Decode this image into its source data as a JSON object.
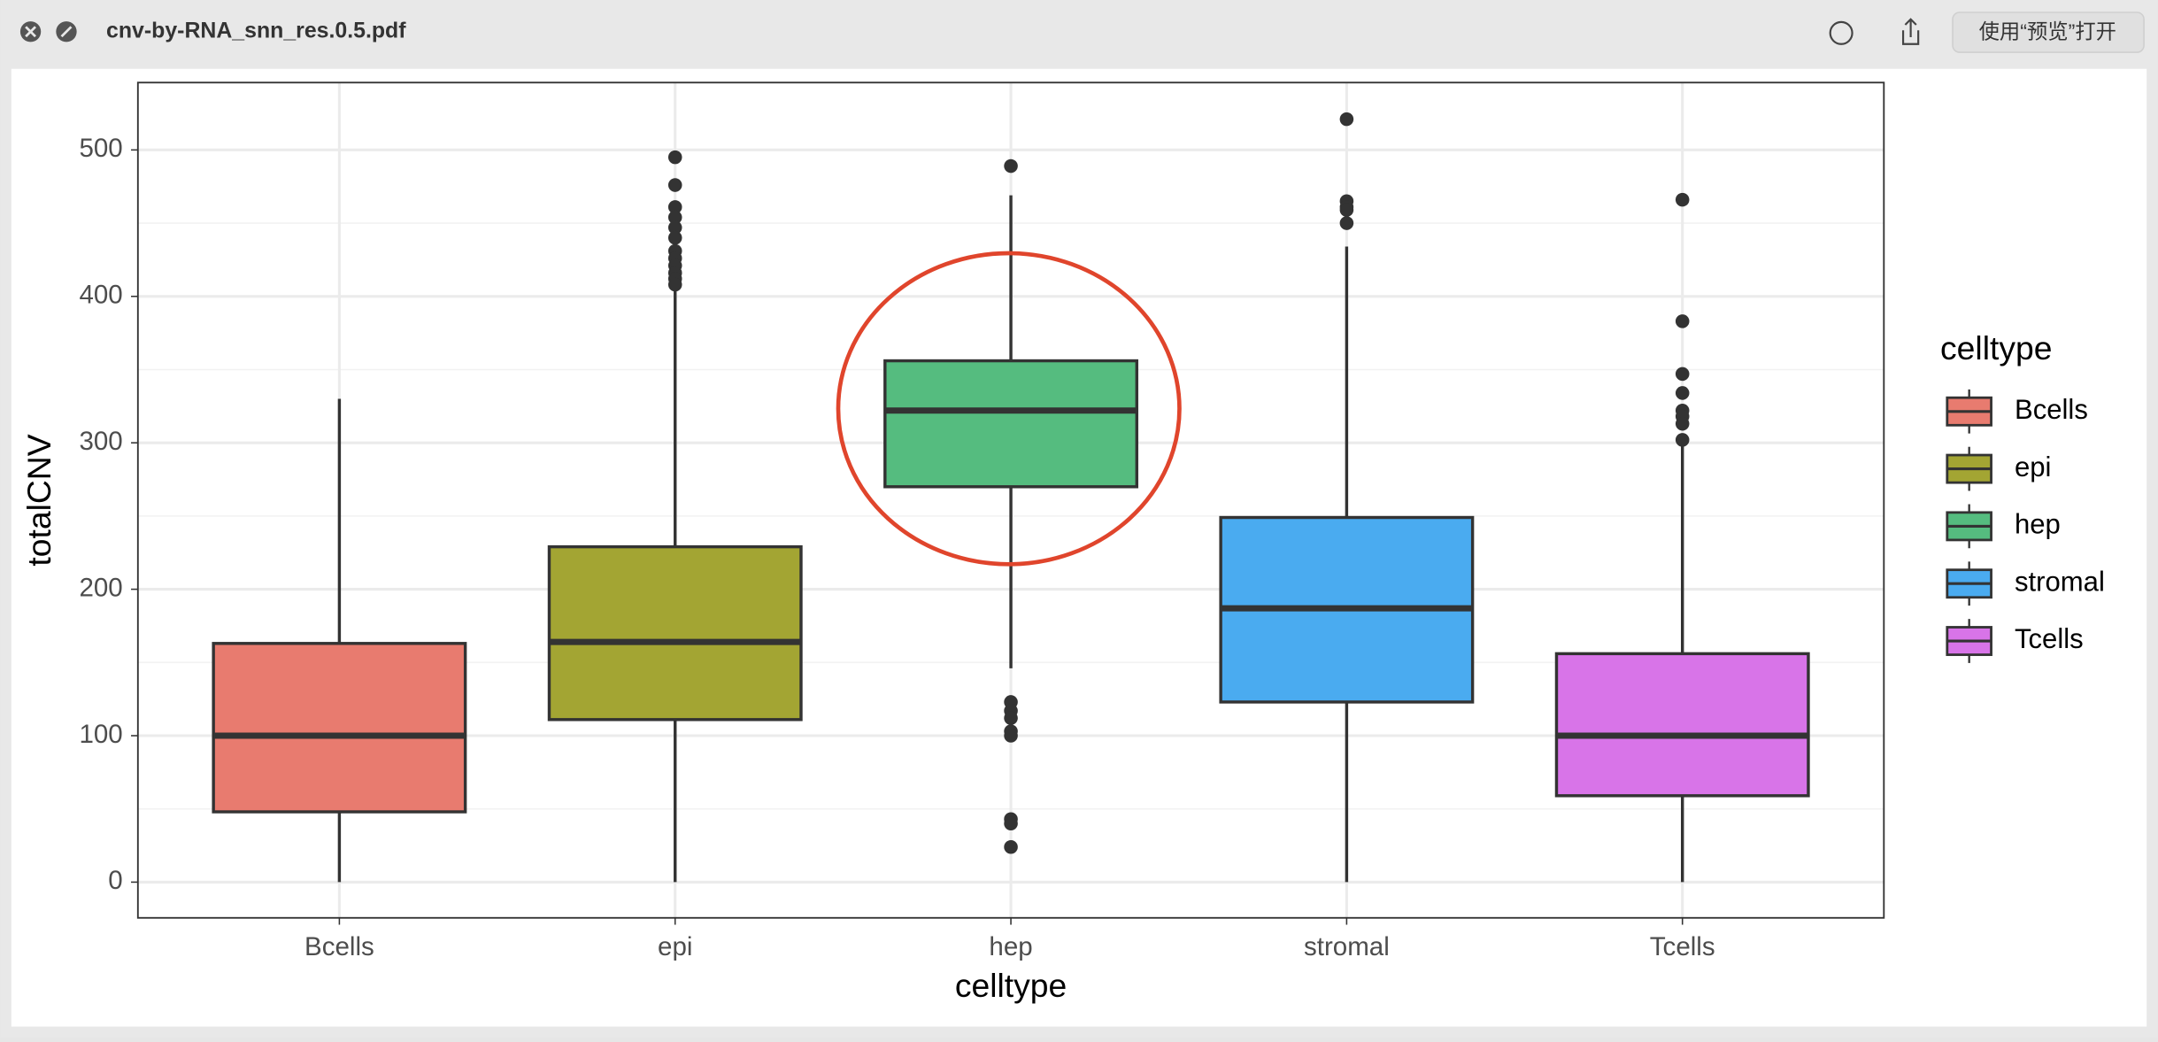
{
  "window": {
    "title": "cnv-by-RNA_snn_res.0.5.pdf",
    "open_button": "使用“预览”打开"
  },
  "chart_data": {
    "type": "boxplot",
    "x_label": "celltype",
    "y_label": "totalCNV",
    "legend_title": "celltype",
    "categories": [
      "Bcells",
      "epi",
      "hep",
      "stromal",
      "Tcells"
    ],
    "series": [
      {
        "name": "Bcells",
        "color": "#e87b6f",
        "whisker_low": 0,
        "q1": 48,
        "median": 100,
        "q3": 163,
        "whisker_high": 330,
        "outliers": []
      },
      {
        "name": "epi",
        "color": "#a3a533",
        "whisker_low": 0,
        "q1": 111,
        "median": 164,
        "q3": 229,
        "whisker_high": 405,
        "outliers": [
          495,
          476,
          461,
          454,
          447,
          440,
          431,
          426,
          421,
          416,
          412,
          408
        ]
      },
      {
        "name": "hep",
        "color": "#55bc7f",
        "whisker_low": 146,
        "q1": 270,
        "median": 322,
        "q3": 356,
        "whisker_high": 469,
        "outliers": [
          489,
          123,
          117,
          112,
          103,
          100,
          43,
          40,
          24
        ]
      },
      {
        "name": "stromal",
        "color": "#4aabf0",
        "whisker_low": 0,
        "q1": 123,
        "median": 187,
        "q3": 249,
        "whisker_high": 434,
        "outliers": [
          521,
          465,
          461,
          459,
          450
        ]
      },
      {
        "name": "Tcells",
        "color": "#d874e8",
        "whisker_low": 0,
        "q1": 59,
        "median": 100,
        "q3": 156,
        "whisker_high": 299,
        "outliers": [
          466,
          383,
          347,
          334,
          322,
          318,
          313,
          302
        ]
      }
    ],
    "ylim": [
      -24.4,
      546
    ],
    "yticks": [
      0,
      100,
      200,
      300,
      400,
      500
    ],
    "grid": true,
    "legend_position": "right"
  }
}
